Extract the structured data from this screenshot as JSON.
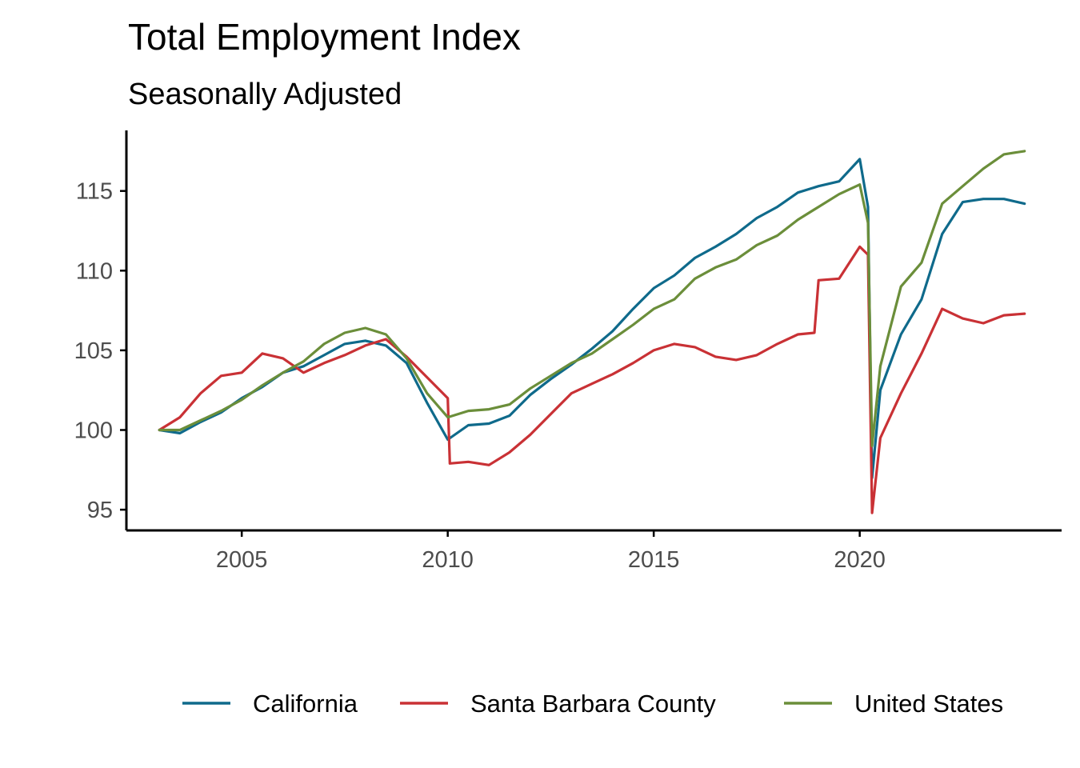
{
  "chart_data": {
    "type": "line",
    "title": "Total Employment Index",
    "subtitle": "Seasonally Adjusted",
    "xlabel": "",
    "ylabel": "",
    "xlim": [
      2002.2,
      2024.9
    ],
    "ylim": [
      93.7,
      118.8
    ],
    "x_ticks": [
      2005,
      2010,
      2015,
      2020
    ],
    "y_ticks": [
      95,
      100,
      105,
      110,
      115
    ],
    "legend_position": "bottom",
    "series": [
      {
        "name": "California",
        "color": "#0f6a8b",
        "points": [
          [
            2003.0,
            100.0
          ],
          [
            2003.5,
            99.8
          ],
          [
            2004.0,
            100.5
          ],
          [
            2004.5,
            101.1
          ],
          [
            2005.0,
            102.0
          ],
          [
            2005.5,
            102.7
          ],
          [
            2006.0,
            103.6
          ],
          [
            2006.5,
            104.0
          ],
          [
            2007.0,
            104.7
          ],
          [
            2007.5,
            105.4
          ],
          [
            2008.0,
            105.6
          ],
          [
            2008.5,
            105.3
          ],
          [
            2009.0,
            104.2
          ],
          [
            2009.5,
            101.7
          ],
          [
            2010.0,
            99.4
          ],
          [
            2010.5,
            100.3
          ],
          [
            2011.0,
            100.4
          ],
          [
            2011.5,
            100.9
          ],
          [
            2012.0,
            102.2
          ],
          [
            2012.5,
            103.2
          ],
          [
            2013.0,
            104.1
          ],
          [
            2013.5,
            105.1
          ],
          [
            2014.0,
            106.2
          ],
          [
            2014.5,
            107.6
          ],
          [
            2015.0,
            108.9
          ],
          [
            2015.5,
            109.7
          ],
          [
            2016.0,
            110.8
          ],
          [
            2016.5,
            111.5
          ],
          [
            2017.0,
            112.3
          ],
          [
            2017.5,
            113.3
          ],
          [
            2018.0,
            114.0
          ],
          [
            2018.5,
            114.9
          ],
          [
            2019.0,
            115.3
          ],
          [
            2019.5,
            115.6
          ],
          [
            2020.0,
            117.0
          ],
          [
            2020.2,
            114.0
          ],
          [
            2020.3,
            97.0
          ],
          [
            2020.5,
            102.5
          ],
          [
            2021.0,
            106.0
          ],
          [
            2021.5,
            108.2
          ],
          [
            2022.0,
            112.3
          ],
          [
            2022.5,
            114.3
          ],
          [
            2023.0,
            114.5
          ],
          [
            2023.5,
            114.5
          ],
          [
            2024.0,
            114.2
          ]
        ]
      },
      {
        "name": "Santa Barbara County",
        "color": "#c93135",
        "points": [
          [
            2003.0,
            100.0
          ],
          [
            2003.5,
            100.8
          ],
          [
            2004.0,
            102.3
          ],
          [
            2004.5,
            103.4
          ],
          [
            2005.0,
            103.6
          ],
          [
            2005.5,
            104.8
          ],
          [
            2006.0,
            104.5
          ],
          [
            2006.5,
            103.6
          ],
          [
            2007.0,
            104.2
          ],
          [
            2007.5,
            104.7
          ],
          [
            2008.0,
            105.3
          ],
          [
            2008.5,
            105.7
          ],
          [
            2009.0,
            104.6
          ],
          [
            2009.5,
            103.3
          ],
          [
            2010.0,
            102.0
          ],
          [
            2010.05,
            97.9
          ],
          [
            2010.5,
            98.0
          ],
          [
            2011.0,
            97.8
          ],
          [
            2011.5,
            98.6
          ],
          [
            2012.0,
            99.7
          ],
          [
            2012.5,
            101.0
          ],
          [
            2013.0,
            102.3
          ],
          [
            2013.5,
            102.9
          ],
          [
            2014.0,
            103.5
          ],
          [
            2014.5,
            104.2
          ],
          [
            2015.0,
            105.0
          ],
          [
            2015.5,
            105.4
          ],
          [
            2016.0,
            105.2
          ],
          [
            2016.5,
            104.6
          ],
          [
            2017.0,
            104.4
          ],
          [
            2017.5,
            104.7
          ],
          [
            2018.0,
            105.4
          ],
          [
            2018.5,
            106.0
          ],
          [
            2018.9,
            106.1
          ],
          [
            2019.0,
            109.4
          ],
          [
            2019.5,
            109.5
          ],
          [
            2020.0,
            111.5
          ],
          [
            2020.2,
            111.0
          ],
          [
            2020.3,
            94.8
          ],
          [
            2020.5,
            99.5
          ],
          [
            2021.0,
            102.3
          ],
          [
            2021.5,
            104.8
          ],
          [
            2022.0,
            107.6
          ],
          [
            2022.5,
            107.0
          ],
          [
            2023.0,
            106.7
          ],
          [
            2023.5,
            107.2
          ],
          [
            2024.0,
            107.3
          ]
        ]
      },
      {
        "name": "United States",
        "color": "#6b8e3a",
        "points": [
          [
            2003.0,
            100.0
          ],
          [
            2003.5,
            100.0
          ],
          [
            2004.0,
            100.6
          ],
          [
            2004.5,
            101.2
          ],
          [
            2005.0,
            101.9
          ],
          [
            2005.5,
            102.8
          ],
          [
            2006.0,
            103.6
          ],
          [
            2006.5,
            104.3
          ],
          [
            2007.0,
            105.4
          ],
          [
            2007.5,
            106.1
          ],
          [
            2008.0,
            106.4
          ],
          [
            2008.5,
            106.0
          ],
          [
            2009.0,
            104.5
          ],
          [
            2009.5,
            102.3
          ],
          [
            2010.0,
            100.8
          ],
          [
            2010.5,
            101.2
          ],
          [
            2011.0,
            101.3
          ],
          [
            2011.5,
            101.6
          ],
          [
            2012.0,
            102.6
          ],
          [
            2012.5,
            103.4
          ],
          [
            2013.0,
            104.2
          ],
          [
            2013.5,
            104.8
          ],
          [
            2014.0,
            105.7
          ],
          [
            2014.5,
            106.6
          ],
          [
            2015.0,
            107.6
          ],
          [
            2015.5,
            108.2
          ],
          [
            2016.0,
            109.5
          ],
          [
            2016.5,
            110.2
          ],
          [
            2017.0,
            110.7
          ],
          [
            2017.5,
            111.6
          ],
          [
            2018.0,
            112.2
          ],
          [
            2018.5,
            113.2
          ],
          [
            2019.0,
            114.0
          ],
          [
            2019.5,
            114.8
          ],
          [
            2020.0,
            115.4
          ],
          [
            2020.2,
            113.0
          ],
          [
            2020.3,
            99.0
          ],
          [
            2020.5,
            104.0
          ],
          [
            2021.0,
            109.0
          ],
          [
            2021.5,
            110.5
          ],
          [
            2022.0,
            114.2
          ],
          [
            2022.5,
            115.3
          ],
          [
            2023.0,
            116.4
          ],
          [
            2023.5,
            117.3
          ],
          [
            2024.0,
            117.5
          ]
        ]
      }
    ]
  }
}
